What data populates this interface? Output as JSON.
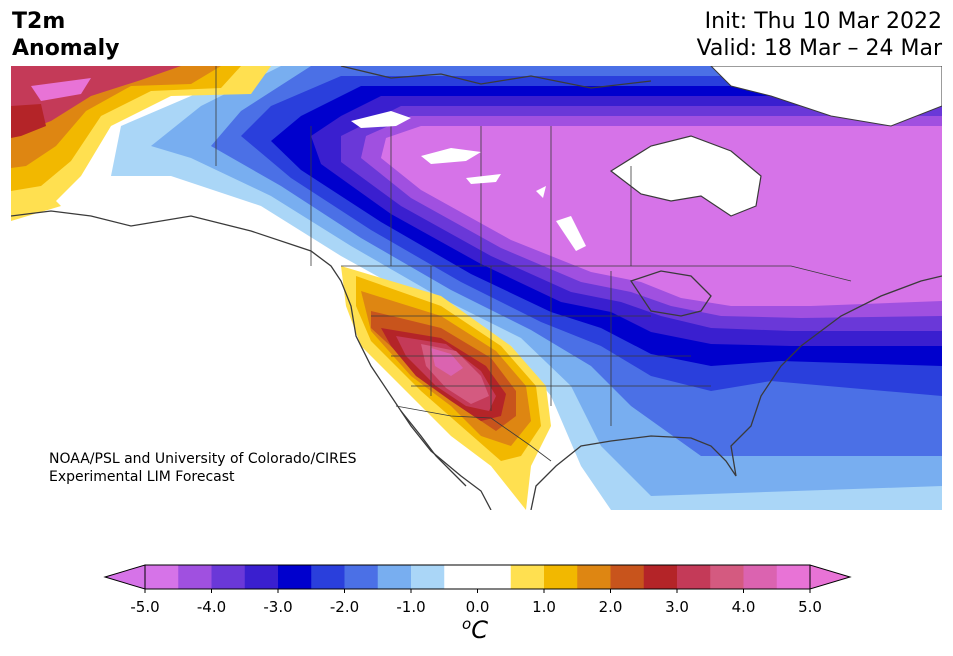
{
  "title": {
    "line1": "T2m",
    "line2": "Anomaly"
  },
  "init": "Init: Thu 10 Mar 2022",
  "valid": "Valid: 18 Mar – 24 Mar",
  "credit": {
    "line1": "NOAA/PSL and University of Colorado/CIRES",
    "line2": "Experimental LIM Forecast"
  },
  "colorbar": {
    "unit_super": "o",
    "unit_main": "C",
    "ticks": [
      "-5.0",
      "-4.0",
      "-3.0",
      "-2.0",
      "-1.0",
      "0.0",
      "1.0",
      "2.0",
      "3.0",
      "4.0",
      "5.0"
    ],
    "tick_values": [
      -5,
      -4,
      -3,
      -2,
      -1,
      0,
      1,
      2,
      3,
      4,
      5
    ],
    "colors": [
      "#d673e8",
      "#a050e0",
      "#6a38d8",
      "#3a1fcf",
      "#0000cd",
      "#2a3fdc",
      "#4b70e6",
      "#78aef0",
      "#aad6f7",
      "#ffffff",
      "#ffffff",
      "#ffe050",
      "#f2b800",
      "#de8612",
      "#c8541c",
      "#b42428",
      "#c43a58",
      "#d45a80",
      "#db63b0",
      "#e873d6"
    ],
    "under_color": "#d673e8",
    "over_color": "#e873d6"
  },
  "map_colors": {
    "land": "#ffffff",
    "coast": "#3a3a3a",
    "strong_cold": "#d673e8",
    "cold4": "#a050e0",
    "cold3": "#6a38d8",
    "cold25": "#3a1fcf",
    "cold2": "#0000cd",
    "cold15": "#2a3fdc",
    "cold1": "#4b70e6",
    "cold05": "#78aef0",
    "cold0": "#aad6f7",
    "warm05": "#ffe050",
    "warm1": "#f2b800",
    "warm15": "#de8612",
    "warm2": "#c8541c",
    "warm25": "#b42428",
    "warm3": "#c43a58",
    "warm4": "#d45a80",
    "warm5": "#e873d6"
  }
}
